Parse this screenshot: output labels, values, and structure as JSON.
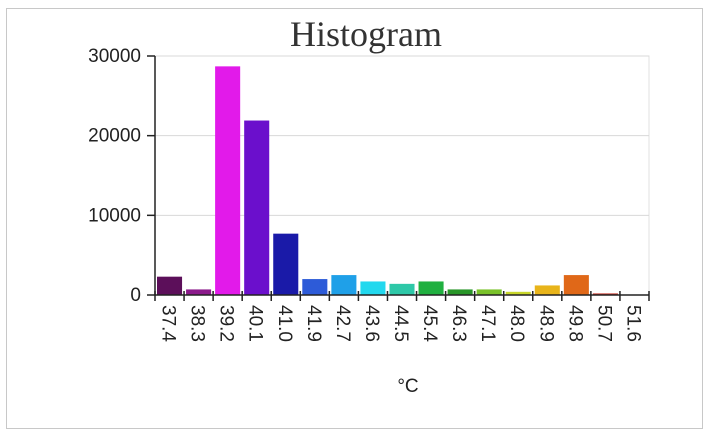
{
  "chart_data": {
    "type": "bar",
    "title": "Histogram",
    "xlabel": "°C",
    "ylabel": "",
    "ylim": [
      0,
      30000
    ],
    "yticks": [
      "0",
      "10000",
      "20000",
      "30000"
    ],
    "grid": true,
    "legend": "none",
    "categories": [
      "37.4",
      "38.3",
      "39.2",
      "40.1",
      "41.0",
      "41.9",
      "42.7",
      "43.6",
      "44.5",
      "45.4",
      "46.3",
      "47.1",
      "48.0",
      "48.9",
      "49.8",
      "50.7",
      "51.6"
    ],
    "values": [
      2300,
      700,
      28700,
      21900,
      7700,
      2000,
      2500,
      1700,
      1400,
      1700,
      700,
      700,
      400,
      1200,
      2500,
      200,
      0
    ],
    "colors": [
      "#5c0f5a",
      "#8b1a8b",
      "#e21aea",
      "#6b0fcc",
      "#1a1aa8",
      "#2d5bd8",
      "#1fa0e8",
      "#22d8ee",
      "#2ec8a8",
      "#20b040",
      "#289628",
      "#7ac22a",
      "#c8d62a",
      "#e8b41a",
      "#e06818",
      "#c8352a",
      "#b81e1e"
    ]
  }
}
